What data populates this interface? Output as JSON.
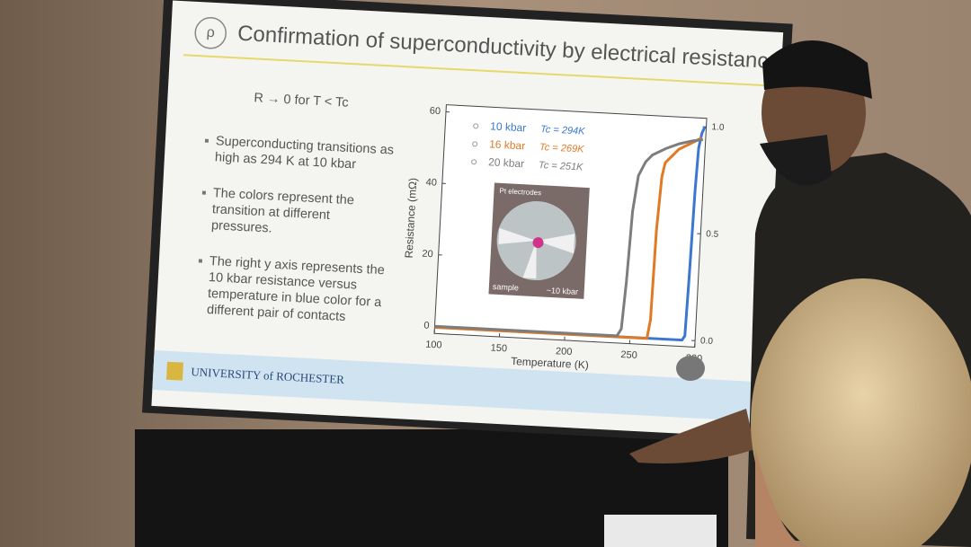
{
  "slide": {
    "logo": "ρ",
    "title": "Confirmation of superconductivity by electrical resistance",
    "condition": "R → 0  for T < Tc",
    "bullets": [
      "Superconducting transitions as high as 294 K at 10 kbar",
      "The colors represent the transition at different pressures.",
      "The right y axis represents the 10 kbar resistance versus temperature in blue color for a different pair of contacts"
    ],
    "footer": "UNIVERSITY of ROCHESTER",
    "inset": {
      "labels": [
        "Pt electrodes",
        "sample",
        "~10 kbar"
      ]
    }
  },
  "chart_data": {
    "type": "line",
    "xlabel": "Temperature (K)",
    "ylabel": "Resistance (mΩ)",
    "xlim": [
      100,
      300
    ],
    "xticks": [
      100,
      150,
      200,
      250,
      300
    ],
    "ylim": [
      -2,
      62
    ],
    "yticks": [
      0,
      20,
      40,
      60
    ],
    "y2lim": [
      -0.03,
      1.04
    ],
    "y2ticks": [
      {
        "value": 0,
        "label": "0.0"
      },
      {
        "value": 0.5,
        "label": "0.5"
      },
      {
        "value": 1,
        "label": "1.0"
      }
    ],
    "series": [
      {
        "name": "10 kbar",
        "tc_label": "Tc = 294K",
        "color": "#3a78d0",
        "axis": "y2",
        "x": [
          100,
          200,
          290,
          292,
          293,
          294,
          295,
          297,
          299
        ],
        "values": [
          0,
          0,
          0,
          0.02,
          0.3,
          0.7,
          0.9,
          0.97,
          1.0
        ]
      },
      {
        "name": "16 kbar",
        "tc_label": "Tc = 269K",
        "color": "#e07a25",
        "x": [
          100,
          200,
          263,
          265,
          266,
          268,
          270,
          275,
          280,
          290,
          297
        ],
        "values": [
          -0.3,
          -0.3,
          -0.3,
          5,
          30,
          45,
          49,
          51,
          53,
          55,
          56.5
        ]
      },
      {
        "name": "20 kbar",
        "tc_label": "Tc = 251K",
        "color": "#7d7d7d",
        "x": [
          100,
          200,
          240,
          243,
          245,
          247,
          250,
          255,
          260,
          270,
          280,
          290,
          298
        ],
        "values": [
          0,
          0,
          0,
          2,
          15,
          35,
          45,
          49,
          51,
          53,
          54.5,
          55.5,
          56
        ]
      }
    ]
  }
}
